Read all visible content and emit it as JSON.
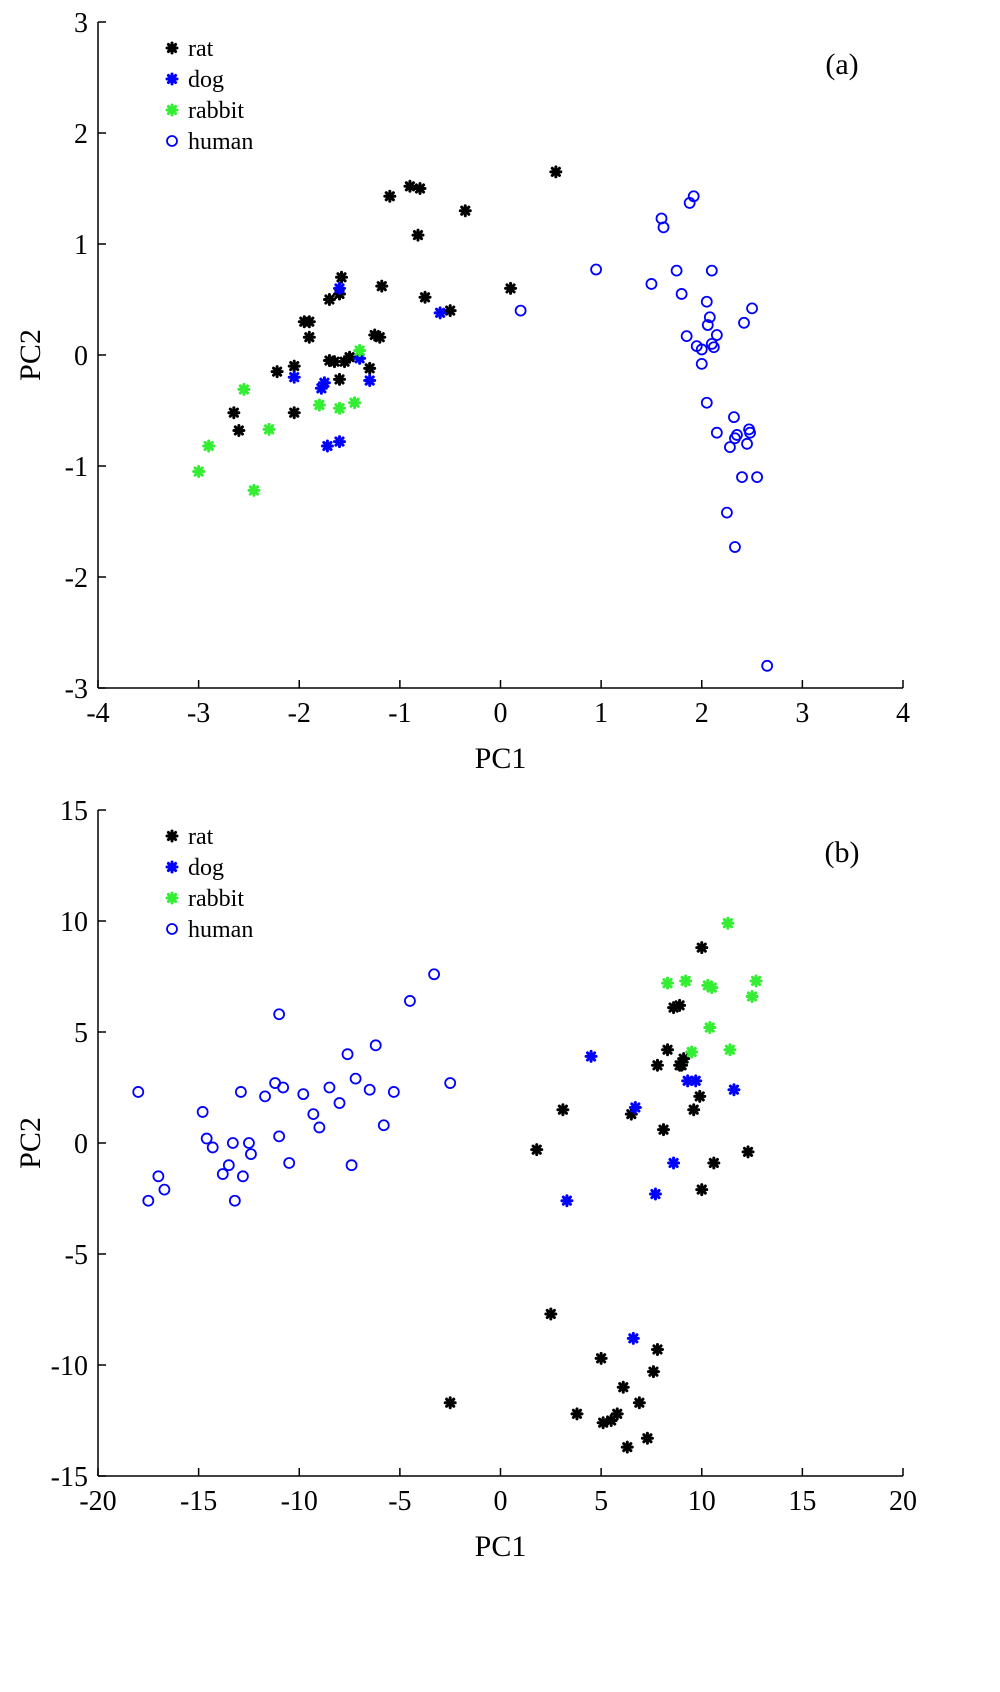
{
  "chart_data": [
    {
      "type": "scatter",
      "panel_label": "(a)",
      "xlabel": "PC1",
      "ylabel": "PC2",
      "xlim": [
        -4,
        4
      ],
      "ylim": [
        -3,
        3
      ],
      "xticks": [
        -4,
        -3,
        -2,
        -1,
        0,
        1,
        2,
        3,
        4
      ],
      "yticks": [
        -3,
        -2,
        -1,
        0,
        1,
        2,
        3
      ],
      "legend_position": "top-left",
      "series": [
        {
          "name": "rat",
          "marker": "star",
          "color": "#000000",
          "points": [
            [
              -2.65,
              -0.52
            ],
            [
              -2.6,
              -0.68
            ],
            [
              -2.22,
              -0.15
            ],
            [
              -2.05,
              -0.1
            ],
            [
              -2.05,
              -0.52
            ],
            [
              -1.95,
              0.3
            ],
            [
              -1.9,
              0.3
            ],
            [
              -1.9,
              0.16
            ],
            [
              -1.7,
              -0.05
            ],
            [
              -1.65,
              -0.06
            ],
            [
              -1.7,
              0.5
            ],
            [
              -1.6,
              0.55
            ],
            [
              -1.58,
              0.7
            ],
            [
              -1.6,
              -0.22
            ],
            [
              -1.55,
              -0.06
            ],
            [
              -1.5,
              -0.02
            ],
            [
              -1.3,
              -0.12
            ],
            [
              -1.25,
              0.18
            ],
            [
              -1.2,
              0.16
            ],
            [
              -1.18,
              0.62
            ],
            [
              -1.1,
              1.43
            ],
            [
              -0.9,
              1.52
            ],
            [
              -0.8,
              1.5
            ],
            [
              -0.82,
              1.08
            ],
            [
              -0.75,
              0.52
            ],
            [
              -0.5,
              0.4
            ],
            [
              -0.35,
              1.3
            ],
            [
              0.1,
              0.6
            ],
            [
              0.55,
              1.65
            ]
          ]
        },
        {
          "name": "dog",
          "marker": "star",
          "color": "#0000ff",
          "points": [
            [
              -2.05,
              -0.2
            ],
            [
              -1.78,
              -0.3
            ],
            [
              -1.75,
              -0.25
            ],
            [
              -1.72,
              -0.82
            ],
            [
              -1.6,
              -0.78
            ],
            [
              -1.6,
              0.6
            ],
            [
              -1.4,
              -0.03
            ],
            [
              -1.3,
              -0.23
            ],
            [
              -0.6,
              0.38
            ]
          ]
        },
        {
          "name": "rabbit",
          "marker": "star",
          "color": "#33ee33",
          "points": [
            [
              -3.0,
              -1.05
            ],
            [
              -2.9,
              -0.82
            ],
            [
              -2.55,
              -0.31
            ],
            [
              -2.45,
              -1.22
            ],
            [
              -2.3,
              -0.67
            ],
            [
              -1.8,
              -0.45
            ],
            [
              -1.6,
              -0.48
            ],
            [
              -1.45,
              -0.43
            ],
            [
              -1.4,
              0.04
            ]
          ]
        },
        {
          "name": "human",
          "marker": "circle",
          "color": "#0000ff",
          "points": [
            [
              0.2,
              0.4
            ],
            [
              0.95,
              0.77
            ],
            [
              1.5,
              0.64
            ],
            [
              1.6,
              1.23
            ],
            [
              1.62,
              1.15
            ],
            [
              1.75,
              0.76
            ],
            [
              1.8,
              0.55
            ],
            [
              1.85,
              0.17
            ],
            [
              1.88,
              1.37
            ],
            [
              1.92,
              1.43
            ],
            [
              1.95,
              0.08
            ],
            [
              2.0,
              0.05
            ],
            [
              2.0,
              -0.08
            ],
            [
              2.05,
              0.48
            ],
            [
              2.06,
              0.27
            ],
            [
              2.08,
              0.34
            ],
            [
              2.1,
              0.76
            ],
            [
              2.1,
              0.1
            ],
            [
              2.12,
              0.07
            ],
            [
              2.15,
              0.18
            ],
            [
              2.05,
              -0.43
            ],
            [
              2.15,
              -0.7
            ],
            [
              2.25,
              -1.42
            ],
            [
              2.28,
              -0.83
            ],
            [
              2.32,
              -0.56
            ],
            [
              2.33,
              -0.75
            ],
            [
              2.35,
              -0.72
            ],
            [
              2.33,
              -1.73
            ],
            [
              2.4,
              -1.1
            ],
            [
              2.42,
              0.29
            ],
            [
              2.45,
              -0.8
            ],
            [
              2.47,
              -0.67
            ],
            [
              2.48,
              -0.7
            ],
            [
              2.5,
              0.42
            ],
            [
              2.55,
              -1.1
            ],
            [
              2.65,
              -2.8
            ]
          ]
        }
      ]
    },
    {
      "type": "scatter",
      "panel_label": "(b)",
      "xlabel": "PC1",
      "ylabel": "PC2",
      "xlim": [
        -20,
        20
      ],
      "ylim": [
        -15,
        15
      ],
      "xticks": [
        -20,
        -15,
        -10,
        -5,
        0,
        5,
        10,
        15,
        20
      ],
      "yticks": [
        -15,
        -10,
        -5,
        0,
        5,
        10,
        15
      ],
      "legend_position": "top-left",
      "series": [
        {
          "name": "rat",
          "marker": "star",
          "color": "#000000",
          "points": [
            [
              -2.5,
              -11.7
            ],
            [
              1.8,
              -0.3
            ],
            [
              2.5,
              -7.7
            ],
            [
              3.1,
              1.5
            ],
            [
              3.8,
              -12.2
            ],
            [
              5.0,
              -9.7
            ],
            [
              5.1,
              -12.6
            ],
            [
              5.5,
              -12.5
            ],
            [
              5.8,
              -12.2
            ],
            [
              6.1,
              -11.0
            ],
            [
              6.3,
              -13.7
            ],
            [
              6.5,
              1.3
            ],
            [
              6.9,
              -11.7
            ],
            [
              7.3,
              -13.3
            ],
            [
              7.6,
              -10.3
            ],
            [
              7.8,
              -9.3
            ],
            [
              7.8,
              3.5
            ],
            [
              8.1,
              0.6
            ],
            [
              8.3,
              4.2
            ],
            [
              8.6,
              6.1
            ],
            [
              8.9,
              3.5
            ],
            [
              8.9,
              6.2
            ],
            [
              9.0,
              3.5
            ],
            [
              9.1,
              3.8
            ],
            [
              9.6,
              1.5
            ],
            [
              9.9,
              2.1
            ],
            [
              10.0,
              -2.1
            ],
            [
              10.0,
              8.8
            ],
            [
              10.6,
              -0.9
            ],
            [
              12.3,
              -0.4
            ]
          ]
        },
        {
          "name": "dog",
          "marker": "star",
          "color": "#0000ff",
          "points": [
            [
              3.3,
              -2.6
            ],
            [
              4.5,
              3.9
            ],
            [
              6.6,
              -8.8
            ],
            [
              6.7,
              1.6
            ],
            [
              7.7,
              -2.3
            ],
            [
              8.6,
              -0.9
            ],
            [
              9.3,
              2.8
            ],
            [
              9.7,
              2.8
            ],
            [
              11.6,
              2.4
            ]
          ]
        },
        {
          "name": "rabbit",
          "marker": "star",
          "color": "#33ee33",
          "points": [
            [
              8.3,
              7.2
            ],
            [
              9.2,
              7.3
            ],
            [
              9.5,
              4.1
            ],
            [
              10.3,
              7.1
            ],
            [
              10.4,
              5.2
            ],
            [
              10.5,
              7.0
            ],
            [
              11.3,
              9.9
            ],
            [
              11.4,
              4.2
            ],
            [
              12.5,
              6.6
            ],
            [
              12.7,
              7.3
            ]
          ]
        },
        {
          "name": "human",
          "marker": "circle",
          "color": "#0000ff",
          "points": [
            [
              -18.0,
              2.3
            ],
            [
              -17.5,
              -2.6
            ],
            [
              -17.0,
              -1.5
            ],
            [
              -16.7,
              -2.1
            ],
            [
              -14.8,
              1.4
            ],
            [
              -14.6,
              0.2
            ],
            [
              -14.3,
              -0.2
            ],
            [
              -13.8,
              -1.4
            ],
            [
              -13.5,
              -1.0
            ],
            [
              -13.3,
              0.0
            ],
            [
              -13.2,
              -2.6
            ],
            [
              -12.8,
              -1.5
            ],
            [
              -12.9,
              2.3
            ],
            [
              -12.5,
              0.0
            ],
            [
              -12.4,
              -0.5
            ],
            [
              -11.7,
              2.1
            ],
            [
              -11.2,
              2.7
            ],
            [
              -11.0,
              0.3
            ],
            [
              -11.0,
              5.8
            ],
            [
              -10.8,
              2.5
            ],
            [
              -10.5,
              -0.9
            ],
            [
              -9.8,
              2.2
            ],
            [
              -9.3,
              1.3
            ],
            [
              -9.0,
              0.7
            ],
            [
              -8.5,
              2.5
            ],
            [
              -8.0,
              1.8
            ],
            [
              -7.6,
              4.0
            ],
            [
              -7.4,
              -1.0
            ],
            [
              -7.2,
              2.9
            ],
            [
              -6.5,
              2.4
            ],
            [
              -6.2,
              4.4
            ],
            [
              -5.8,
              0.8
            ],
            [
              -5.3,
              2.3
            ],
            [
              -4.5,
              6.4
            ],
            [
              -3.3,
              7.6
            ],
            [
              -2.5,
              2.7
            ]
          ]
        }
      ]
    }
  ]
}
